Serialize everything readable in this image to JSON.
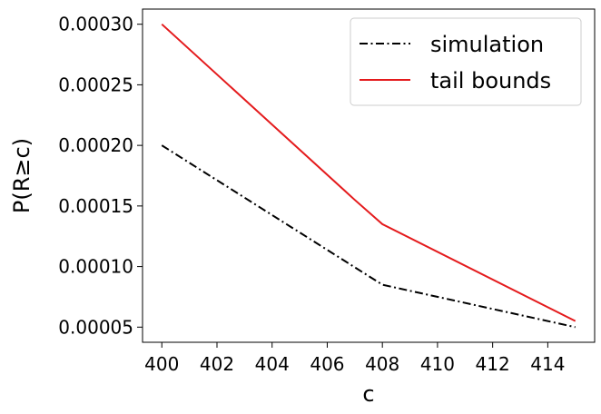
{
  "chart_data": {
    "type": "line",
    "xlabel": "c",
    "ylabel": "P(R≥c)",
    "xlim": [
      399.3,
      415.7
    ],
    "ylim": [
      3.75e-05,
      0.0003125
    ],
    "xticks": [
      400,
      402,
      404,
      406,
      408,
      410,
      412,
      414
    ],
    "yticks": [
      5e-05,
      0.0001,
      0.00015,
      0.0002,
      0.00025,
      0.0003
    ],
    "ytick_labels": [
      "0.00005",
      "0.00010",
      "0.00015",
      "0.00020",
      "0.00025",
      "0.00030"
    ],
    "grid": false,
    "legend_position": "top-right",
    "series": [
      {
        "name": "simulation",
        "color": "#000000",
        "style": "dashdot",
        "x": [
          400,
          408,
          415
        ],
        "y": [
          0.0002,
          8.5e-05,
          5e-05
        ]
      },
      {
        "name": "tail bounds",
        "color": "#e41a1c",
        "style": "solid",
        "x": [
          400,
          407,
          408,
          415
        ],
        "y": [
          0.0003,
          0.000155,
          0.000135,
          5.5e-05
        ]
      }
    ]
  }
}
